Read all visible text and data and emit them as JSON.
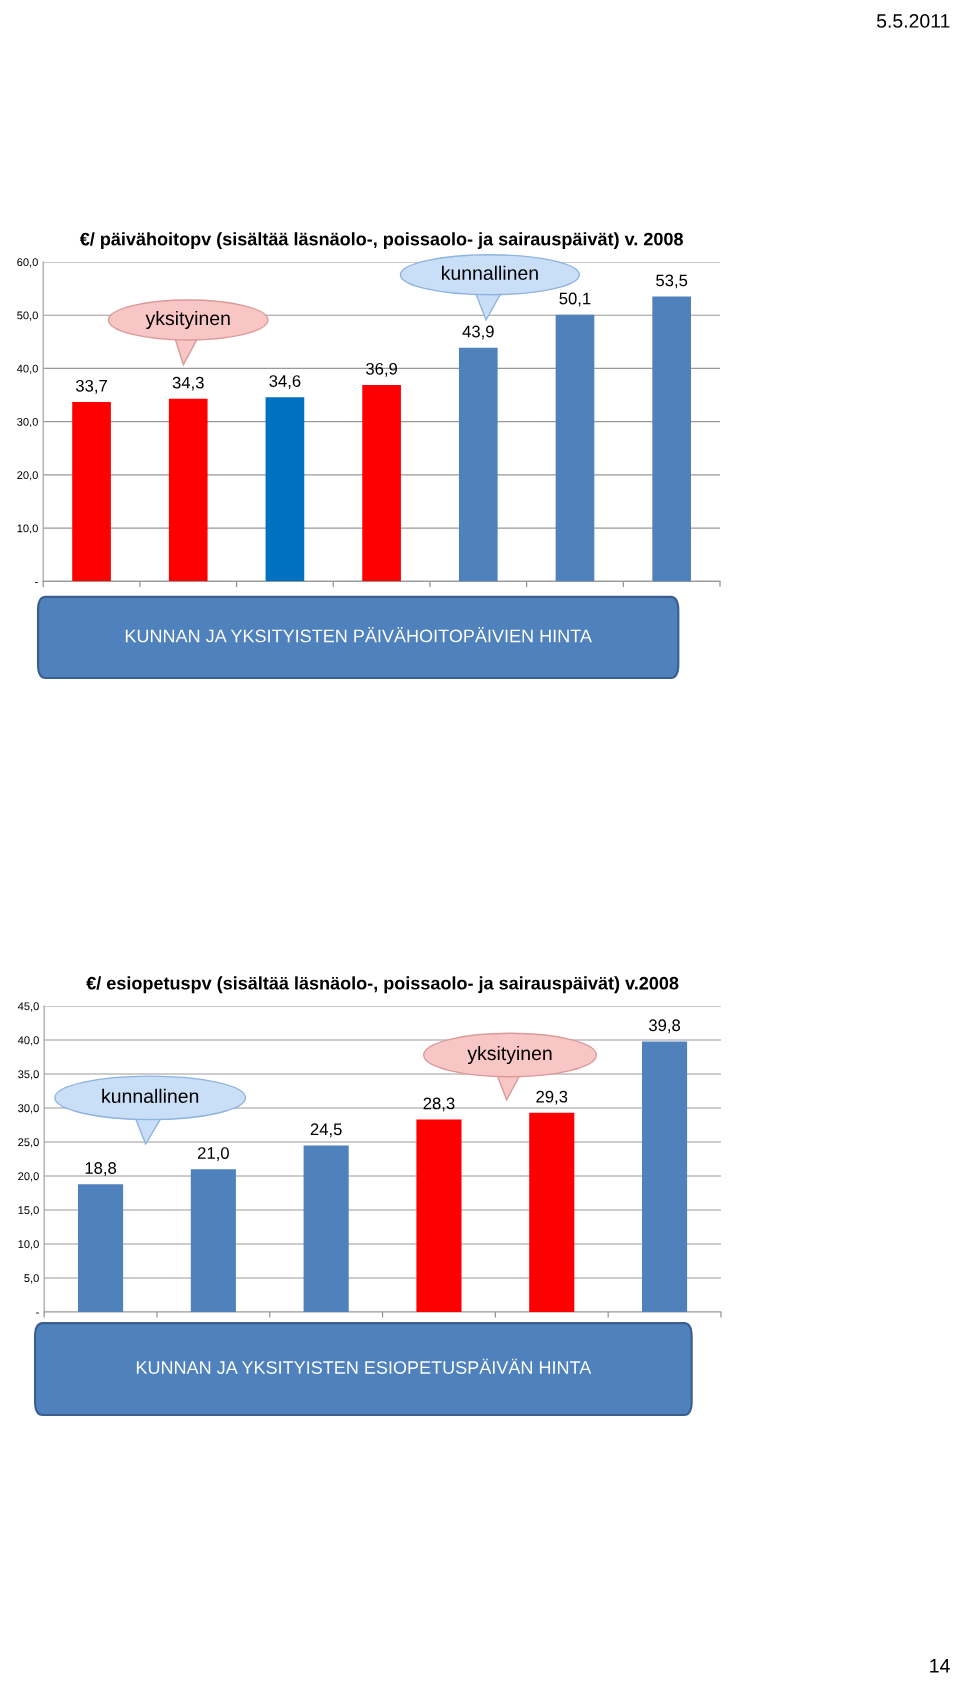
{
  "chart_data": [
    {
      "type": "bar",
      "title": "€/ päivähoitopv (sisältää läsnäolo-, poissaolo- ja sairauspäivät) v. 2008",
      "categories": [
        null,
        null,
        null,
        null,
        null,
        null,
        null
      ],
      "values": [
        33.7,
        34.3,
        34.6,
        36.9,
        43.9,
        50.1,
        53.5
      ],
      "colors": [
        "#ff0000",
        "#ff0000",
        "#0070c0",
        "#ff0000",
        "#4f81bd",
        "#4f81bd",
        "#4f81bd"
      ],
      "value_labels": [
        "33,7",
        "34,3",
        "34,6",
        "36,9",
        "43,9",
        "50,1",
        "53,5"
      ],
      "ylim": [
        0,
        60
      ],
      "yticks": [
        {
          "value": 0,
          "label": "-"
        },
        {
          "value": 10,
          "label": "10,0"
        },
        {
          "value": 20,
          "label": "20,0"
        },
        {
          "value": 30,
          "label": "30,0"
        },
        {
          "value": 40,
          "label": "40,0"
        },
        {
          "value": 50,
          "label": "50,0"
        },
        {
          "value": 60,
          "label": "60,0"
        }
      ],
      "grid": "y",
      "annotations": [
        "yksityinen",
        "kunnallinen",
        "KUNNAN JA YKSITYISTEN PÄIVÄHOITOPÄIVIEN HINTA",
        "5.5.2011"
      ]
    },
    {
      "type": "bar",
      "title": "€/ esiopetuspv (sisältää läsnäolo-, poissaolo- ja sairauspäivät) v.2008",
      "categories": [
        null,
        null,
        null,
        null,
        null,
        null
      ],
      "values": [
        18.8,
        21.0,
        24.5,
        28.3,
        29.3,
        39.8
      ],
      "colors": [
        "#4f81bd",
        "#4f81bd",
        "#4f81bd",
        "#ff0000",
        "#ff0000",
        "#4f81bd"
      ],
      "value_labels": [
        "18,8",
        "21,0",
        "24,5",
        "28,3",
        "29,3",
        "39,8"
      ],
      "ylim": [
        0,
        45
      ],
      "yticks": [
        {
          "value": 0,
          "label": "-"
        },
        {
          "value": 5,
          "label": "5,0"
        },
        {
          "value": 10,
          "label": "10,0"
        },
        {
          "value": 15,
          "label": "15,0"
        },
        {
          "value": 20,
          "label": "20,0"
        },
        {
          "value": 25,
          "label": "25,0"
        },
        {
          "value": 30,
          "label": "30,0"
        },
        {
          "value": 35,
          "label": "35,0"
        },
        {
          "value": 40,
          "label": "40,0"
        },
        {
          "value": 45,
          "label": "45,0"
        }
      ],
      "grid": "y",
      "annotations": [
        "kunnallinen",
        "yksityinen",
        "KUNNAN JA YKSITYISTEN ESIOPETUSPÄIVÄN HINTA",
        "14"
      ]
    }
  ]
}
